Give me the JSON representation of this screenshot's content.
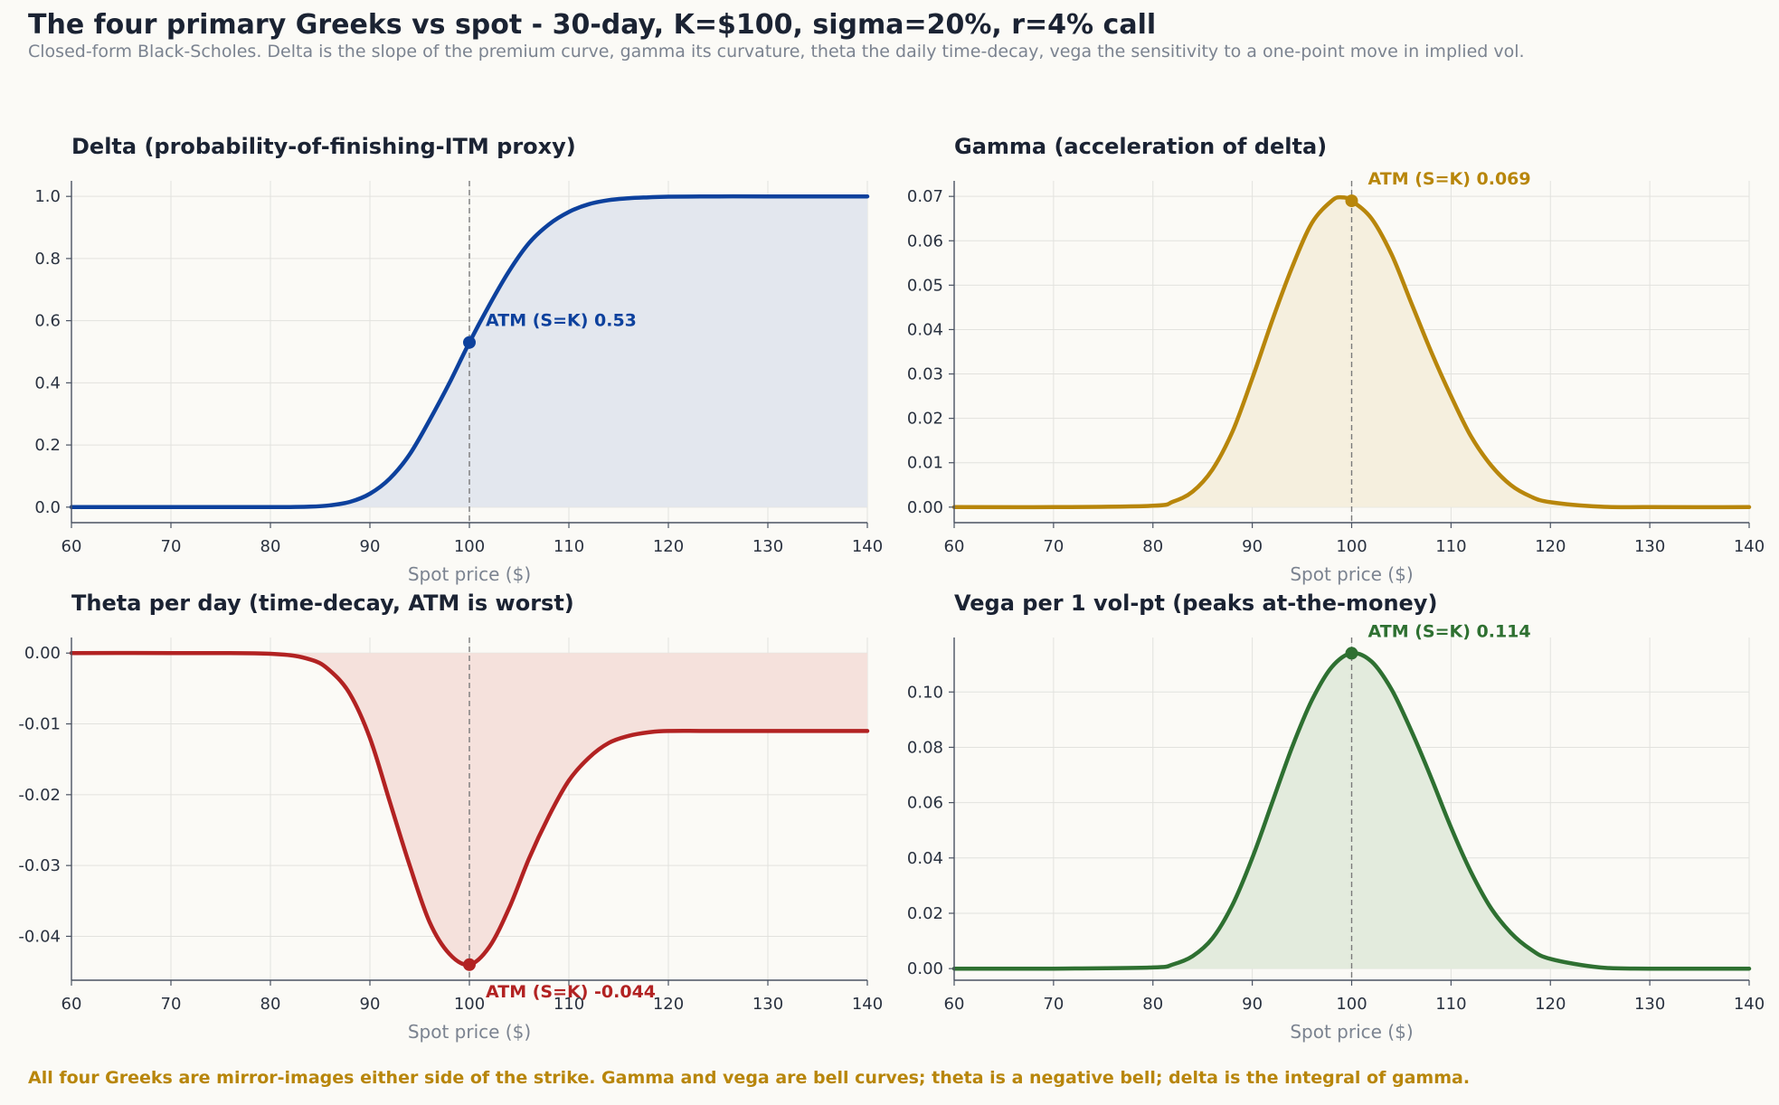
{
  "title": "The four primary Greeks vs spot - 30-day, K=$100, sigma=20%, r=4% call",
  "subtitle": "Closed-form Black-Scholes. Delta is the slope of the premium curve, gamma its curvature, theta the daily time-decay, vega the sensitivity to a one-point move in implied vol.",
  "footnote": "All four Greeks are mirror-images either side of the strike. Gamma and vega are bell curves; theta is a negative bell; delta is the integral of gamma.",
  "chart_data": [
    {
      "type": "area",
      "key": "delta",
      "title": "Delta (probability-of-finishing-ITM proxy)",
      "xlabel": "Spot price ($)",
      "ylabel": "",
      "xlim": [
        60,
        140
      ],
      "ylim": [
        -0.05,
        1.05
      ],
      "xticks": [
        60,
        70,
        80,
        90,
        100,
        110,
        120,
        130,
        140
      ],
      "xtick_labels": [
        "60",
        "70",
        "80",
        "90",
        "100",
        "110",
        "120",
        "130",
        "140"
      ],
      "yticks": [
        0.0,
        0.2,
        0.4,
        0.6,
        0.8,
        1.0
      ],
      "ytick_labels": [
        "0.0",
        "0.2",
        "0.4",
        "0.6",
        "0.8",
        "1.0"
      ],
      "grid": true,
      "color": "#0d419d",
      "fill_color": "#e3e7ee",
      "strike_line": 100,
      "series": [
        {
          "x": [
            60,
            70,
            80,
            82,
            84,
            86,
            88,
            90,
            92,
            94,
            96,
            98,
            100,
            102,
            104,
            106,
            108,
            110,
            112,
            114,
            116,
            118,
            120,
            125,
            130,
            140
          ],
          "values": [
            0.0,
            0.0,
            0.0,
            0.0004,
            0.0015,
            0.006,
            0.017,
            0.043,
            0.092,
            0.17,
            0.28,
            0.4,
            0.53,
            0.65,
            0.76,
            0.85,
            0.91,
            0.95,
            0.975,
            0.988,
            0.994,
            0.997,
            0.999,
            1.0,
            1.0,
            1.0
          ]
        }
      ],
      "marker": {
        "x": 100,
        "y": 0.53,
        "label": "ATM (S=K) 0.53",
        "label_pos": "upper-right"
      }
    },
    {
      "type": "area",
      "key": "gamma",
      "title": "Gamma (acceleration of delta)",
      "xlabel": "Spot price ($)",
      "ylabel": "",
      "xlim": [
        60,
        140
      ],
      "ylim": [
        -0.0035,
        0.0735
      ],
      "xticks": [
        60,
        70,
        80,
        90,
        100,
        110,
        120,
        130,
        140
      ],
      "xtick_labels": [
        "60",
        "70",
        "80",
        "90",
        "100",
        "110",
        "120",
        "130",
        "140"
      ],
      "yticks": [
        0.0,
        0.01,
        0.02,
        0.03,
        0.04,
        0.05,
        0.06,
        0.07
      ],
      "ytick_labels": [
        "0.00",
        "0.01",
        "0.02",
        "0.03",
        "0.04",
        "0.05",
        "0.06",
        "0.07"
      ],
      "grid": true,
      "color": "#b8860b",
      "fill_color": "#f5efde",
      "strike_line": 100,
      "series": [
        {
          "x": [
            60,
            70,
            80,
            82,
            84,
            86,
            88,
            90,
            92,
            94,
            96,
            98,
            99,
            100,
            102,
            104,
            106,
            108,
            110,
            112,
            114,
            116,
            118,
            120,
            125,
            130,
            140
          ],
          "values": [
            0.0,
            0.0,
            0.0003,
            0.0012,
            0.0035,
            0.0085,
            0.017,
            0.029,
            0.042,
            0.054,
            0.064,
            0.069,
            0.0698,
            0.069,
            0.065,
            0.057,
            0.046,
            0.035,
            0.025,
            0.016,
            0.0095,
            0.005,
            0.0024,
            0.0011,
            0.0001,
            0.0,
            0.0
          ]
        }
      ],
      "marker": {
        "x": 100,
        "y": 0.069,
        "label": "ATM (S=K) 0.069",
        "label_pos": "upper-right"
      }
    },
    {
      "type": "area",
      "key": "theta",
      "title": "Theta per day (time-decay, ATM is worst)",
      "xlabel": "Spot price ($)",
      "ylabel": "",
      "xlim": [
        60,
        140
      ],
      "ylim": [
        -0.0462,
        0.0022
      ],
      "xticks": [
        60,
        70,
        80,
        90,
        100,
        110,
        120,
        130,
        140
      ],
      "xtick_labels": [
        "60",
        "70",
        "80",
        "90",
        "100",
        "110",
        "120",
        "130",
        "140"
      ],
      "yticks": [
        0.0,
        -0.01,
        -0.02,
        -0.03,
        -0.04
      ],
      "ytick_labels": [
        "0.00",
        "-0.01",
        "-0.02",
        "-0.03",
        "-0.04"
      ],
      "grid": true,
      "color": "#b22222",
      "fill_color": "#f5e1dc",
      "strike_line": 100,
      "series": [
        {
          "x": [
            60,
            70,
            80,
            84,
            86,
            88,
            90,
            92,
            94,
            96,
            98,
            100,
            102,
            104,
            106,
            108,
            110,
            112,
            114,
            116,
            118,
            120,
            125,
            130,
            140
          ],
          "values": [
            0.0,
            0.0,
            -0.0001,
            -0.0009,
            -0.0025,
            -0.0058,
            -0.012,
            -0.021,
            -0.03,
            -0.038,
            -0.0425,
            -0.044,
            -0.0415,
            -0.036,
            -0.029,
            -0.023,
            -0.018,
            -0.0148,
            -0.0127,
            -0.0117,
            -0.0112,
            -0.011,
            -0.011,
            -0.011,
            -0.011
          ]
        }
      ],
      "marker": {
        "x": 100,
        "y": -0.044,
        "label": "ATM (S=K) -0.044",
        "label_pos": "lower-right"
      }
    },
    {
      "type": "area",
      "key": "vega",
      "title": "Vega per 1 vol-pt (peaks at-the-money)",
      "xlabel": "Spot price ($)",
      "ylabel": "",
      "xlim": [
        60,
        140
      ],
      "ylim": [
        -0.0042,
        0.1197
      ],
      "xticks": [
        60,
        70,
        80,
        90,
        100,
        110,
        120,
        130,
        140
      ],
      "xtick_labels": [
        "60",
        "70",
        "80",
        "90",
        "100",
        "110",
        "120",
        "130",
        "140"
      ],
      "yticks": [
        0.0,
        0.02,
        0.04,
        0.06,
        0.08,
        0.1
      ],
      "ytick_labels": [
        "0.00",
        "0.02",
        "0.04",
        "0.06",
        "0.08",
        "0.10"
      ],
      "grid": true,
      "color": "#2e7031",
      "fill_color": "#e3ebdd",
      "strike_line": 100,
      "series": [
        {
          "x": [
            60,
            70,
            80,
            82,
            84,
            86,
            88,
            90,
            92,
            94,
            96,
            98,
            100,
            102,
            104,
            106,
            108,
            110,
            112,
            114,
            116,
            118,
            120,
            125,
            130,
            140
          ],
          "values": [
            0.0,
            0.0,
            0.0004,
            0.0015,
            0.0045,
            0.011,
            0.023,
            0.04,
            0.06,
            0.08,
            0.097,
            0.109,
            0.114,
            0.111,
            0.101,
            0.086,
            0.069,
            0.051,
            0.035,
            0.022,
            0.013,
            0.007,
            0.0035,
            0.0004,
            0.0,
            0.0
          ]
        }
      ],
      "marker": {
        "x": 100,
        "y": 0.114,
        "label": "ATM (S=K) 0.114",
        "label_pos": "upper-right"
      }
    }
  ]
}
